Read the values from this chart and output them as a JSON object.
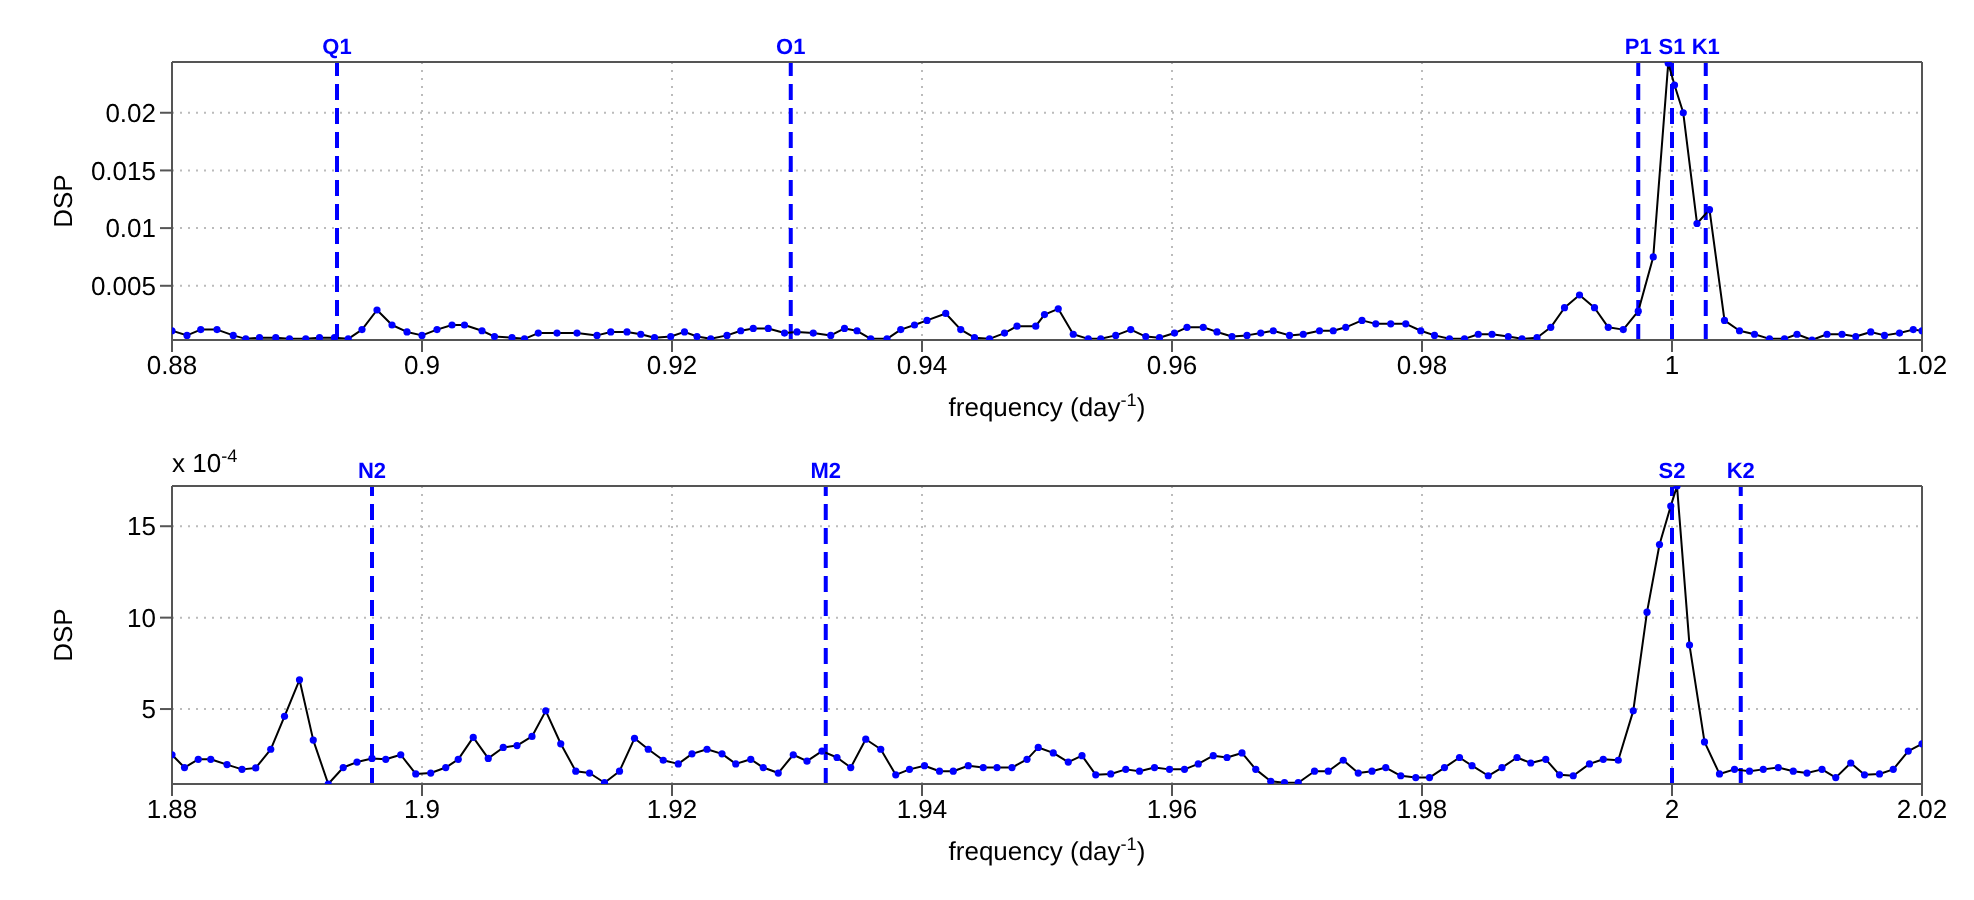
{
  "chart_data": [
    {
      "type": "line",
      "xlabel": "frequency (day$^{-1}$)",
      "ylabel": "DSP",
      "xlim": [
        0.88,
        1.02
      ],
      "xticks": [
        0.88,
        0.9,
        0.92,
        0.94,
        0.96,
        0.98,
        1,
        1.02
      ],
      "ylim": [
        0.0003,
        0.0244
      ],
      "yticks": [
        0.005,
        0.01,
        0.015,
        0.02
      ],
      "grid": true,
      "marker": "circle",
      "line_style": "solid",
      "ref_lines": [
        {
          "axis": "x",
          "value": 0.8932,
          "label": "Q1",
          "color": "#0000ff",
          "line_style": "dashed"
        },
        {
          "axis": "x",
          "value": 0.9295,
          "label": "O1",
          "color": "#0000ff",
          "line_style": "dashed"
        },
        {
          "axis": "x",
          "value": 0.9973,
          "label": "P1",
          "color": "#0000ff",
          "line_style": "dashed"
        },
        {
          "axis": "x",
          "value": 1.0,
          "label": "S1",
          "color": "#0000ff",
          "line_style": "dashed"
        },
        {
          "axis": "x",
          "value": 1.0027,
          "label": "K1",
          "color": "#0000ff",
          "line_style": "dashed"
        }
      ],
      "series": [
        {
          "color": "#000000",
          "x": [
            0.88,
            0.8812,
            0.8823,
            0.8836,
            0.8849,
            0.8859,
            0.887,
            0.8883,
            0.8894,
            0.8907,
            0.8918,
            0.893,
            0.8941,
            0.8952,
            0.8964,
            0.8976,
            0.8988,
            0.9,
            0.9012,
            0.9024,
            0.9034,
            0.9048,
            0.9058,
            0.9072,
            0.9082,
            0.9093,
            0.9108,
            0.9124,
            0.914,
            0.9151,
            0.9164,
            0.9175,
            0.9186,
            0.9199,
            0.921,
            0.922,
            0.9231,
            0.9244,
            0.9255,
            0.9265,
            0.9277,
            0.929,
            0.93,
            0.9313,
            0.9327,
            0.9338,
            0.9348,
            0.9359,
            0.9372,
            0.9383,
            0.9394,
            0.9404,
            0.9419,
            0.9431,
            0.9442,
            0.9454,
            0.9466,
            0.9476,
            0.9491,
            0.9498,
            0.9509,
            0.9521,
            0.9533,
            0.9543,
            0.9555,
            0.9567,
            0.9579,
            0.959,
            0.9602,
            0.9612,
            0.9625,
            0.9636,
            0.9648,
            0.966,
            0.9671,
            0.9681,
            0.9694,
            0.9705,
            0.9718,
            0.9729,
            0.9739,
            0.9752,
            0.9763,
            0.9775,
            0.9787,
            0.9799,
            0.981,
            0.9822,
            0.9834,
            0.9845,
            0.9856,
            0.9869,
            0.988,
            0.9892,
            0.9903,
            0.9914,
            0.9926,
            0.9938,
            0.9949,
            0.9961,
            0.9973,
            0.9985,
            0.9997,
            1.0002,
            1.0009,
            1.002,
            1.003,
            1.0042,
            1.0054,
            1.0066,
            1.0078,
            1.009,
            1.01,
            1.0112,
            1.0124,
            1.0136,
            1.0147,
            1.0159,
            1.017,
            1.0182,
            1.0193,
            1.02
          ],
          "values": [
            0.0011,
            0.0007,
            0.0012,
            0.0012,
            0.0007,
            0.0004,
            0.0005,
            0.0005,
            0.0004,
            0.0004,
            0.0005,
            0.0005,
            0.0004,
            0.0012,
            0.0029,
            0.0016,
            0.001,
            0.0007,
            0.0012,
            0.0016,
            0.0016,
            0.0011,
            0.0006,
            0.0005,
            0.0004,
            0.0009,
            0.0009,
            0.0009,
            0.0007,
            0.001,
            0.001,
            0.0008,
            0.0005,
            0.0006,
            0.001,
            0.0006,
            0.0004,
            0.0007,
            0.0011,
            0.0013,
            0.0013,
            0.0009,
            0.001,
            0.0009,
            0.0007,
            0.0013,
            0.0011,
            0.0004,
            0.0004,
            0.0012,
            0.0016,
            0.002,
            0.0026,
            0.0012,
            0.0005,
            0.0004,
            0.0009,
            0.0015,
            0.0015,
            0.0025,
            0.003,
            0.0008,
            0.0004,
            0.0004,
            0.0007,
            0.0012,
            0.0006,
            0.0005,
            0.0009,
            0.0014,
            0.0014,
            0.001,
            0.0006,
            0.0007,
            0.0009,
            0.0011,
            0.0007,
            0.0008,
            0.0011,
            0.0011,
            0.0014,
            0.002,
            0.0017,
            0.0017,
            0.0017,
            0.0011,
            0.0007,
            0.0004,
            0.0004,
            0.0008,
            0.0008,
            0.0006,
            0.0004,
            0.0005,
            0.0014,
            0.0031,
            0.0042,
            0.0031,
            0.0014,
            0.0012,
            0.0028,
            0.0075,
            0.0243,
            0.0224,
            0.02,
            0.0104,
            0.0116,
            0.002,
            0.0011,
            0.0008,
            0.0004,
            0.0004,
            0.0008,
            0.0003,
            0.0008,
            0.0008,
            0.0006,
            0.001,
            0.0007,
            0.0009,
            0.0012,
            0.0011
          ]
        }
      ]
    },
    {
      "type": "line",
      "xlabel": "frequency (day$^{-1}$)",
      "ylabel": "DSP",
      "annotations": [
        "x 10$^{-4}$"
      ],
      "xlim": [
        1.88,
        2.02
      ],
      "xticks": [
        1.88,
        1.9,
        1.92,
        1.94,
        1.96,
        1.98,
        2,
        2.02
      ],
      "ylim": [
        0.9,
        17.2
      ],
      "yticks": [
        5,
        10,
        15
      ],
      "grid": true,
      "marker": "circle",
      "line_style": "solid",
      "ref_lines": [
        {
          "axis": "x",
          "value": 1.896,
          "label": "N2",
          "color": "#0000ff",
          "line_style": "dashed"
        },
        {
          "axis": "x",
          "value": 1.9323,
          "label": "M2",
          "color": "#0000ff",
          "line_style": "dashed"
        },
        {
          "axis": "x",
          "value": 2.0,
          "label": "S2",
          "color": "#0000ff",
          "line_style": "dashed"
        },
        {
          "axis": "x",
          "value": 2.0055,
          "label": "K2",
          "color": "#0000ff",
          "line_style": "dashed"
        }
      ],
      "series": [
        {
          "color": "#000000",
          "x": [
            1.88,
            1.881,
            1.8821,
            1.8831,
            1.8844,
            1.8856,
            1.8867,
            1.8879,
            1.889,
            1.8902,
            1.8913,
            1.8925,
            1.8937,
            1.8948,
            1.896,
            1.8971,
            1.8983,
            1.8995,
            1.9007,
            1.9019,
            1.9029,
            1.9041,
            1.9053,
            1.9065,
            1.9076,
            1.9088,
            1.9099,
            1.9111,
            1.9123,
            1.9134,
            1.9146,
            1.9158,
            1.917,
            1.9181,
            1.9193,
            1.9205,
            1.9216,
            1.9228,
            1.924,
            1.9251,
            1.9263,
            1.9273,
            1.9285,
            1.9297,
            1.9308,
            1.932,
            1.9332,
            1.9343,
            1.9355,
            1.9367,
            1.9379,
            1.939,
            1.9402,
            1.9414,
            1.9425,
            1.9437,
            1.9449,
            1.946,
            1.9472,
            1.9484,
            1.9493,
            1.9505,
            1.9517,
            1.9528,
            1.9539,
            1.9551,
            1.9563,
            1.9574,
            1.9586,
            1.9598,
            1.961,
            1.9621,
            1.9633,
            1.9644,
            1.9656,
            1.9667,
            1.9679,
            1.969,
            1.9701,
            1.9714,
            1.9725,
            1.9737,
            1.9749,
            1.976,
            1.9771,
            1.9783,
            1.9795,
            1.9806,
            1.9818,
            1.983,
            1.984,
            1.9853,
            1.9864,
            1.9876,
            1.9887,
            1.9899,
            1.991,
            1.9921,
            1.9934,
            1.9945,
            1.9957,
            1.9969,
            1.998,
            1.999,
            1.9999,
            2.0004,
            2.0014,
            2.0026,
            2.0038,
            2.005,
            2.0062,
            2.0073,
            2.0085,
            2.0097,
            2.0108,
            2.012,
            2.0131,
            2.0143,
            2.0154,
            2.0166,
            2.0177,
            2.0189,
            2.02
          ],
          "values": [
            2.5,
            1.8,
            2.25,
            2.25,
            1.96,
            1.7,
            1.78,
            2.8,
            4.6,
            6.6,
            3.3,
            0.9,
            1.8,
            2.1,
            2.3,
            2.25,
            2.5,
            1.45,
            1.5,
            1.8,
            2.25,
            3.45,
            2.3,
            2.9,
            3.0,
            3.5,
            4.9,
            3.1,
            1.6,
            1.5,
            0.97,
            1.6,
            3.4,
            2.8,
            2.2,
            2.0,
            2.55,
            2.8,
            2.55,
            2.0,
            2.25,
            1.8,
            1.5,
            2.5,
            2.15,
            2.7,
            2.35,
            1.8,
            3.35,
            2.8,
            1.4,
            1.7,
            1.9,
            1.6,
            1.6,
            1.9,
            1.8,
            1.8,
            1.8,
            2.25,
            2.9,
            2.6,
            2.1,
            2.45,
            1.4,
            1.45,
            1.7,
            1.6,
            1.8,
            1.7,
            1.7,
            2.0,
            2.45,
            2.35,
            2.6,
            1.7,
            1.05,
            0.97,
            0.97,
            1.6,
            1.6,
            2.2,
            1.5,
            1.6,
            1.8,
            1.35,
            1.25,
            1.25,
            1.8,
            2.35,
            1.9,
            1.35,
            1.8,
            2.35,
            2.05,
            2.25,
            1.4,
            1.35,
            2.0,
            2.25,
            2.2,
            4.9,
            10.3,
            14.0,
            16.1,
            17.2,
            8.5,
            3.2,
            1.45,
            1.7,
            1.6,
            1.7,
            1.8,
            1.6,
            1.5,
            1.7,
            1.25,
            2.05,
            1.4,
            1.45,
            1.7,
            2.7,
            3.1
          ]
        }
      ]
    }
  ]
}
